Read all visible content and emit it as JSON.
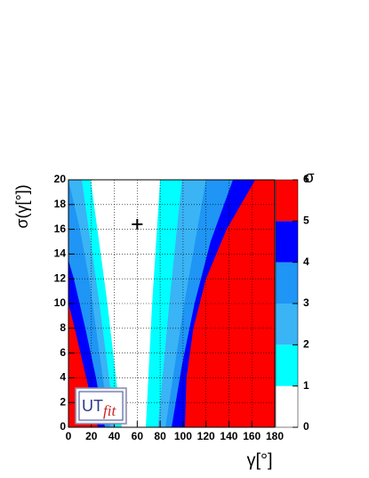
{
  "chart_data": {
    "type": "contour",
    "xlabel": "γ[°]",
    "ylabel": "σ(γ[°])",
    "xlim": [
      0,
      180
    ],
    "xticks": [
      0,
      20,
      40,
      60,
      80,
      100,
      120,
      140,
      160,
      180
    ],
    "ylim": [
      0,
      20
    ],
    "yticks": [
      0,
      2,
      4,
      6,
      8,
      10,
      12,
      14,
      16,
      18,
      20
    ],
    "grid": true,
    "colorbar": {
      "title": "σ",
      "zlim": [
        0,
        6
      ],
      "zticks": [
        0,
        1,
        2,
        3,
        4,
        5,
        6
      ],
      "colors": [
        "#ffffff",
        "#00ffff",
        "#3ab4f5",
        "#1f95f5",
        "#0000ff",
        "#ff0000"
      ]
    },
    "contours": [
      {
        "level": 1,
        "side": "left",
        "y": [
          0,
          10,
          20
        ],
        "x": [
          46.5,
          34,
          19.4
        ]
      },
      {
        "level": 1,
        "side": "right",
        "y": [
          0,
          10,
          20
        ],
        "x": [
          67.5,
          73,
          80
        ]
      },
      {
        "level": 2,
        "side": "left",
        "y": [
          0,
          10,
          20
        ],
        "x": [
          41,
          27,
          11.6
        ]
      },
      {
        "level": 2,
        "side": "right",
        "y": [
          0,
          10,
          20
        ],
        "x": [
          78,
          88,
          99
        ]
      },
      {
        "level": 3,
        "side": "left",
        "y": [
          0,
          4,
          8,
          12,
          16,
          20
        ],
        "x": [
          36.5,
          30,
          24,
          18,
          10,
          0
        ]
      },
      {
        "level": 3,
        "side": "right",
        "y": [
          0,
          10,
          20
        ],
        "x": [
          84.6,
          101,
          120
        ]
      },
      {
        "level": 4,
        "side": "left",
        "y": [
          0,
          4,
          8,
          12,
          13.5
        ],
        "x": [
          31.8,
          24,
          14.7,
          4.7,
          0
        ]
      },
      {
        "level": 4,
        "side": "right",
        "y": [
          0,
          5,
          10,
          15,
          20
        ],
        "x": [
          90,
          99,
          110,
          124,
          143.5
        ]
      },
      {
        "level": 5,
        "side": "left",
        "y": [
          0,
          4,
          8,
          10
        ],
        "x": [
          25.6,
          15.5,
          5.4,
          0
        ]
      },
      {
        "level": 5,
        "side": "right",
        "y": [
          0,
          4,
          8,
          12,
          16,
          20
        ],
        "x": [
          101.6,
          103,
          109,
          120,
          138,
          163
        ]
      }
    ],
    "marker": {
      "x": 60,
      "y": 16.4
    },
    "logo": [
      "UT",
      "fit"
    ]
  }
}
